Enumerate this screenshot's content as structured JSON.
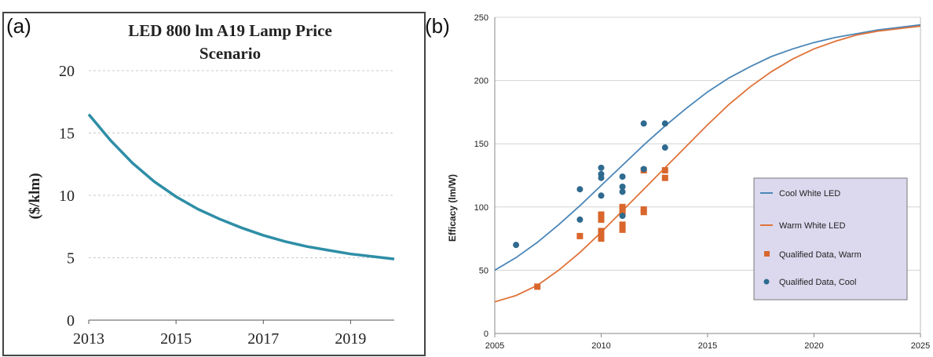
{
  "panels": {
    "a": "(a)",
    "b": "(b)"
  },
  "colors": {
    "price_line": "#2e8ea6",
    "cool_line": "#4a86b8",
    "warm_line": "#e0733a",
    "warm_points": "#d9662c",
    "cool_points": "#2f6a8f",
    "legend_bg": "#dcd9ee"
  },
  "chart_data": [
    {
      "type": "line",
      "title": "LED 800 lm A19 Lamp Price Scenario",
      "title_line1": "LED 800 lm A19 Lamp Price",
      "title_line2": "Scenario",
      "xlabel": "",
      "ylabel": "($/klm)",
      "xlim": [
        2013,
        2020
      ],
      "ylim": [
        0,
        20
      ],
      "x_ticks": [
        2013,
        2015,
        2017,
        2019
      ],
      "y_ticks": [
        0,
        5,
        10,
        15,
        20
      ],
      "grid": true,
      "series": [
        {
          "x": [
            2013,
            2013.5,
            2014,
            2014.5,
            2015,
            2015.5,
            2016,
            2016.5,
            2017,
            2017.5,
            2018,
            2018.5,
            2019,
            2019.5,
            2020
          ],
          "values": [
            16.5,
            14.4,
            12.6,
            11.1,
            9.9,
            8.9,
            8.1,
            7.4,
            6.8,
            6.3,
            5.9,
            5.6,
            5.3,
            5.1,
            4.9
          ]
        }
      ]
    },
    {
      "type": "line",
      "title": "",
      "xlabel": "",
      "ylabel": "Efficacy (lm/W)",
      "xlim": [
        2005,
        2025
      ],
      "ylim": [
        0,
        250
      ],
      "x_ticks": [
        2005,
        2010,
        2015,
        2020,
        2025
      ],
      "y_ticks": [
        0,
        50,
        100,
        150,
        200,
        250
      ],
      "grid": true,
      "legend_placement": "right",
      "series": [
        {
          "name": "Cool White LED",
          "type": "line",
          "x": [
            2005,
            2006,
            2007,
            2008,
            2009,
            2010,
            2011,
            2012,
            2013,
            2014,
            2015,
            2016,
            2017,
            2018,
            2019,
            2020,
            2021,
            2022,
            2023,
            2024,
            2025
          ],
          "values": [
            50,
            60,
            72,
            86,
            101,
            117,
            133,
            149,
            164,
            178,
            191,
            202,
            211,
            219,
            225,
            230,
            234,
            237,
            240,
            242,
            244
          ]
        },
        {
          "name": "Warm White LED",
          "type": "line",
          "x": [
            2005,
            2006,
            2007,
            2008,
            2009,
            2010,
            2011,
            2012,
            2013,
            2014,
            2015,
            2016,
            2017,
            2018,
            2019,
            2020,
            2021,
            2022,
            2023,
            2024,
            2025
          ],
          "values": [
            25,
            30,
            38,
            50,
            64,
            80,
            97,
            114,
            131,
            148,
            165,
            181,
            195,
            207,
            217,
            225,
            231,
            236,
            239,
            241,
            243
          ]
        },
        {
          "name": "Qualified Data, Warm",
          "type": "scatter",
          "x": [
            2007,
            2009,
            2010,
            2010,
            2010,
            2010,
            2010,
            2010,
            2011,
            2011,
            2011,
            2011,
            2011,
            2012,
            2012,
            2012,
            2013,
            2013
          ],
          "values": [
            37,
            77,
            75,
            78,
            81,
            90,
            92,
            94,
            82,
            86,
            95,
            98,
            100,
            96,
            98,
            129,
            123,
            129
          ]
        },
        {
          "name": "Qualified Data, Cool",
          "type": "scatter",
          "x": [
            2006,
            2009,
            2009,
            2010,
            2010,
            2010,
            2010,
            2011,
            2011,
            2011,
            2011,
            2012,
            2012,
            2013,
            2013
          ],
          "values": [
            70,
            90,
            114,
            109,
            123,
            126,
            131,
            93,
            112,
            116,
            124,
            130,
            166,
            147,
            166
          ]
        }
      ]
    }
  ]
}
